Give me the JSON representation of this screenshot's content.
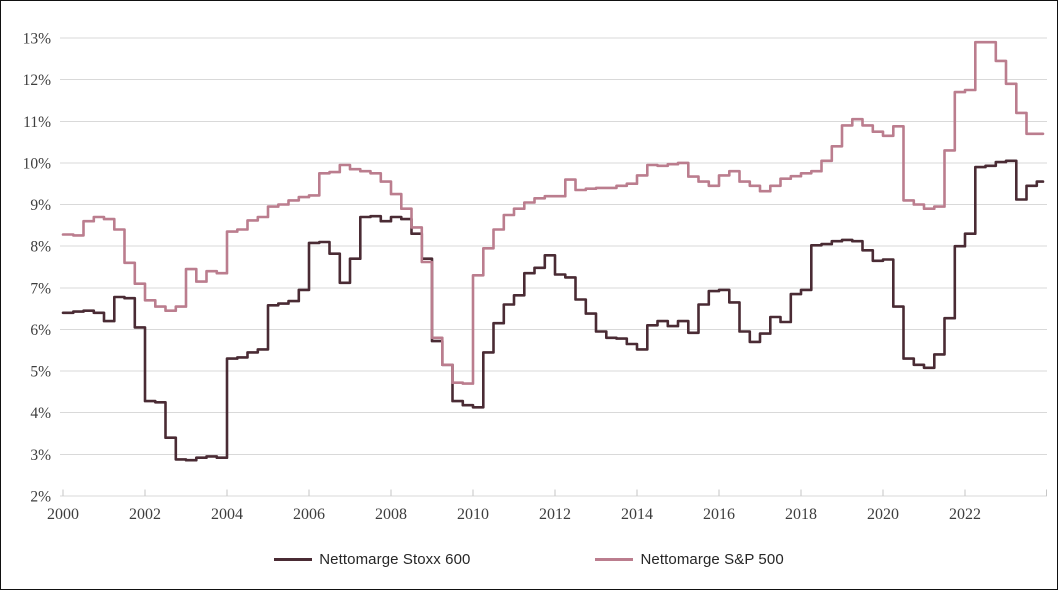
{
  "chart": {
    "legend": {
      "items": [
        {
          "label": "Nettomarge Stoxx 600",
          "color": "#4a2b34"
        },
        {
          "label": "Nettomarge S&P 500",
          "color": "#bb7d8e"
        }
      ]
    },
    "colors": {
      "gridline": "#d9d9d9",
      "axis_line": "#d9d9d9",
      "tick": "#c6c6c6",
      "axis_text": "#3d3d3d",
      "background": "#ffffff",
      "border": "#111111"
    }
  },
  "chart_data": {
    "type": "line",
    "title": "",
    "xlabel": "",
    "ylabel": "",
    "grid": true,
    "legend_position": "bottom",
    "ylim": [
      2,
      13
    ],
    "xlim": [
      2000,
      2024
    ],
    "y_ticks": [
      {
        "value": 13,
        "label": "13%"
      },
      {
        "value": 12,
        "label": "12%"
      },
      {
        "value": 11,
        "label": "11%"
      },
      {
        "value": 10,
        "label": "10%"
      },
      {
        "value": 9,
        "label": "9%"
      },
      {
        "value": 8,
        "label": "8%"
      },
      {
        "value": 7,
        "label": "7%"
      },
      {
        "value": 6,
        "label": "6%"
      },
      {
        "value": 5,
        "label": "5%"
      },
      {
        "value": 4,
        "label": "4%"
      },
      {
        "value": 3,
        "label": "3%"
      },
      {
        "value": 2,
        "label": "2%"
      }
    ],
    "x_ticks": [
      {
        "value": 2000,
        "label": "2000"
      },
      {
        "value": 2002,
        "label": "2002"
      },
      {
        "value": 2004,
        "label": "2004"
      },
      {
        "value": 2006,
        "label": "2006"
      },
      {
        "value": 2008,
        "label": "2008"
      },
      {
        "value": 2010,
        "label": "2010"
      },
      {
        "value": 2012,
        "label": "2012"
      },
      {
        "value": 2014,
        "label": "2014"
      },
      {
        "value": 2016,
        "label": "2016"
      },
      {
        "value": 2018,
        "label": "2018"
      },
      {
        "value": 2020,
        "label": "2020"
      },
      {
        "value": 2022,
        "label": "2022"
      }
    ],
    "x": [
      2000,
      2000.25,
      2000.5,
      2000.75,
      2001,
      2001.25,
      2001.5,
      2001.75,
      2002,
      2002.25,
      2002.5,
      2002.75,
      2003,
      2003.25,
      2003.5,
      2003.75,
      2004,
      2004.25,
      2004.5,
      2004.75,
      2005,
      2005.25,
      2005.5,
      2005.75,
      2006,
      2006.25,
      2006.5,
      2006.75,
      2007,
      2007.25,
      2007.5,
      2007.75,
      2008,
      2008.25,
      2008.5,
      2008.75,
      2009,
      2009.25,
      2009.5,
      2009.75,
      2010,
      2010.25,
      2010.5,
      2010.75,
      2011,
      2011.25,
      2011.5,
      2011.75,
      2012,
      2012.25,
      2012.5,
      2012.75,
      2013,
      2013.25,
      2013.5,
      2013.75,
      2014,
      2014.25,
      2014.5,
      2014.75,
      2015,
      2015.25,
      2015.5,
      2015.75,
      2016,
      2016.25,
      2016.5,
      2016.75,
      2017,
      2017.25,
      2017.5,
      2017.75,
      2018,
      2018.25,
      2018.5,
      2018.75,
      2019,
      2019.25,
      2019.5,
      2019.75,
      2020,
      2020.25,
      2020.5,
      2020.75,
      2021,
      2021.25,
      2021.5,
      2021.75,
      2022,
      2022.25,
      2022.5,
      2022.75,
      2023,
      2023.25,
      2023.5,
      2023.75
    ],
    "series": [
      {
        "name": "Nettomarge Stoxx 600",
        "color": "#4a2b34",
        "unit": "%",
        "values": [
          6.4,
          6.43,
          6.45,
          6.4,
          6.2,
          6.78,
          6.75,
          6.05,
          4.28,
          4.25,
          3.4,
          2.88,
          2.86,
          2.92,
          2.95,
          2.92,
          5.3,
          5.33,
          5.45,
          5.52,
          6.58,
          6.62,
          6.68,
          6.95,
          8.08,
          8.1,
          7.82,
          7.12,
          7.7,
          8.7,
          8.72,
          8.6,
          8.7,
          8.65,
          8.3,
          7.7,
          5.72,
          5.15,
          4.28,
          4.18,
          4.13,
          5.45,
          6.15,
          6.6,
          6.82,
          7.35,
          7.48,
          7.78,
          7.32,
          7.25,
          6.72,
          6.38,
          5.95,
          5.8,
          5.78,
          5.65,
          5.52,
          6.1,
          6.2,
          6.08,
          6.2,
          5.92,
          6.6,
          6.92,
          6.95,
          6.65,
          5.95,
          5.7,
          5.9,
          6.3,
          6.18,
          6.85,
          6.95,
          8.02,
          8.05,
          8.12,
          8.15,
          8.12,
          7.9,
          7.65,
          7.68,
          6.55,
          5.3,
          5.15,
          5.08,
          5.4,
          6.27,
          8.0,
          8.3,
          9.9,
          9.93,
          10.02,
          10.05,
          9.12,
          9.45,
          9.55
        ]
      },
      {
        "name": "Nettomarge S&P 500",
        "color": "#bb7d8e",
        "unit": "%",
        "values": [
          8.28,
          8.26,
          8.6,
          8.7,
          8.65,
          8.4,
          7.6,
          7.1,
          6.7,
          6.55,
          6.45,
          6.55,
          7.45,
          7.15,
          7.4,
          7.35,
          8.35,
          8.4,
          8.62,
          8.7,
          8.95,
          9.0,
          9.1,
          9.18,
          9.22,
          9.75,
          9.78,
          9.95,
          9.85,
          9.8,
          9.75,
          9.55,
          9.25,
          8.9,
          8.45,
          7.62,
          5.8,
          5.15,
          4.72,
          4.7,
          7.3,
          7.95,
          8.4,
          8.75,
          8.9,
          9.05,
          9.15,
          9.2,
          9.2,
          9.6,
          9.35,
          9.38,
          9.4,
          9.4,
          9.45,
          9.5,
          9.7,
          9.95,
          9.93,
          9.97,
          10.0,
          9.67,
          9.55,
          9.45,
          9.7,
          9.8,
          9.55,
          9.45,
          9.32,
          9.45,
          9.62,
          9.68,
          9.75,
          9.8,
          10.05,
          10.4,
          10.9,
          11.05,
          10.9,
          10.75,
          10.65,
          10.88,
          9.1,
          9.0,
          8.9,
          8.95,
          10.3,
          11.7,
          11.75,
          12.9,
          12.9,
          12.45,
          11.9,
          11.2,
          10.7,
          10.7
        ]
      }
    ]
  }
}
